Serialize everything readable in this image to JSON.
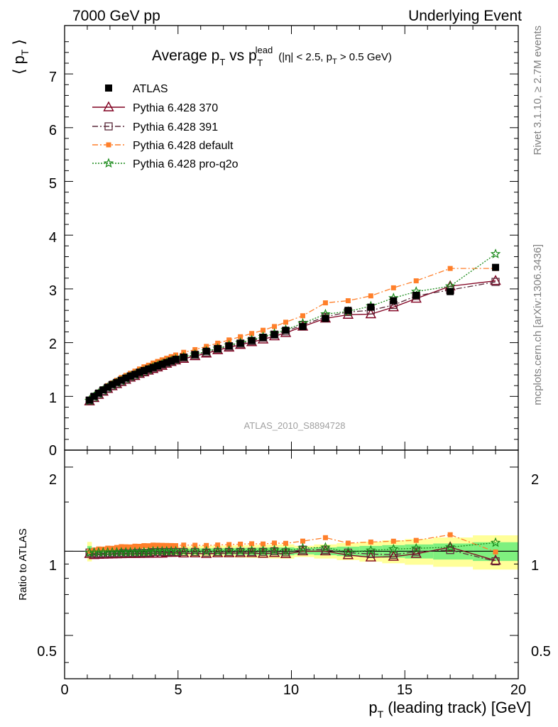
{
  "header": {
    "left": "7000 GeV pp",
    "right": "Underlying Event"
  },
  "title": {
    "main_a": "Average p",
    "main_sub1": "T",
    "main_b": " vs p",
    "main_sup": "lead",
    "main_sub2": "T",
    "cut_a": "(|η| < 2.5, p",
    "cut_sub": "T",
    "cut_b": " > 0.5 GeV)"
  },
  "side_text": {
    "rivet": "Rivet 3.1.10, ≥ 2.7M events",
    "mcplots": "mcplots.cern.ch [arXiv:1306.3436]"
  },
  "watermark": "ATLAS_2010_S8894728",
  "axes": {
    "ylabel_main": "⟨ p",
    "ylabel_main_sub": "T",
    "ylabel_main_end": " ⟩",
    "ylabel_ratio": "Ratio to ATLAS",
    "xlabel_a": "p",
    "xlabel_sub": "T",
    "xlabel_b": " (leading track) [GeV]",
    "x_ticks": [
      "0",
      "5",
      "10",
      "15",
      "20"
    ],
    "y_ticks_main": [
      "0",
      "1",
      "2",
      "3",
      "4",
      "5",
      "6",
      "7"
    ],
    "y_ticks_ratio": [
      "0.5",
      "1",
      "2"
    ]
  },
  "legend": [
    {
      "label": "ATLAS",
      "color": "#000000",
      "marker": "square-filled",
      "line": "none"
    },
    {
      "label": "Pythia 6.428 370",
      "color": "#800020",
      "marker": "triangle-open",
      "line": "solid"
    },
    {
      "label": "Pythia 6.428 391",
      "color": "#5a2a3a",
      "marker": "square-open",
      "line": "dashdot"
    },
    {
      "label": "Pythia 6.428 default",
      "color": "#ff7f2a",
      "marker": "square-filled-small",
      "line": "dashdot"
    },
    {
      "label": "Pythia 6.428 pro-q2o",
      "color": "#1a8a1a",
      "marker": "star-open",
      "line": "dotted"
    }
  ],
  "chart_data": {
    "type": "line",
    "xlim": [
      0,
      20
    ],
    "ylim": [
      0,
      7.9
    ],
    "ratio_ylim": [
      0.35,
      2.3
    ],
    "ratio_scale": "log",
    "x": [
      1.1,
      1.3,
      1.5,
      1.7,
      1.9,
      2.1,
      2.3,
      2.5,
      2.7,
      2.9,
      3.1,
      3.3,
      3.5,
      3.7,
      3.9,
      4.1,
      4.3,
      4.5,
      4.7,
      4.9,
      5.25,
      5.75,
      6.25,
      6.75,
      7.25,
      7.75,
      8.25,
      8.75,
      9.25,
      9.75,
      10.5,
      11.5,
      12.5,
      13.5,
      14.5,
      15.5,
      17.0,
      19.0
    ],
    "series": [
      {
        "name": "ATLAS",
        "values": [
          0.93,
          1.0,
          1.06,
          1.12,
          1.17,
          1.22,
          1.26,
          1.3,
          1.34,
          1.38,
          1.41,
          1.45,
          1.48,
          1.51,
          1.54,
          1.57,
          1.6,
          1.63,
          1.66,
          1.69,
          1.73,
          1.78,
          1.84,
          1.89,
          1.94,
          1.99,
          2.04,
          2.1,
          2.15,
          2.23,
          2.3,
          2.45,
          2.6,
          2.66,
          2.78,
          2.88,
          2.95,
          3.4
        ]
      },
      {
        "name": "Pythia 6.428 370",
        "values": [
          0.91,
          0.97,
          1.03,
          1.09,
          1.14,
          1.19,
          1.23,
          1.27,
          1.31,
          1.35,
          1.38,
          1.42,
          1.45,
          1.48,
          1.51,
          1.54,
          1.57,
          1.61,
          1.64,
          1.67,
          1.7,
          1.75,
          1.8,
          1.86,
          1.91,
          1.96,
          2.01,
          2.06,
          2.12,
          2.18,
          2.3,
          2.45,
          2.52,
          2.53,
          2.66,
          2.82,
          3.05,
          3.15
        ]
      },
      {
        "name": "Pythia 6.428 391",
        "values": [
          0.92,
          0.98,
          1.04,
          1.1,
          1.15,
          1.2,
          1.24,
          1.28,
          1.32,
          1.36,
          1.39,
          1.43,
          1.46,
          1.49,
          1.53,
          1.56,
          1.59,
          1.62,
          1.65,
          1.68,
          1.72,
          1.77,
          1.82,
          1.88,
          1.93,
          1.98,
          2.03,
          2.09,
          2.15,
          2.21,
          2.33,
          2.48,
          2.57,
          2.6,
          2.7,
          2.87,
          2.98,
          3.13
        ]
      },
      {
        "name": "Pythia 6.428 default",
        "values": [
          0.93,
          1.01,
          1.08,
          1.14,
          1.2,
          1.25,
          1.3,
          1.35,
          1.39,
          1.43,
          1.47,
          1.51,
          1.55,
          1.58,
          1.62,
          1.65,
          1.68,
          1.71,
          1.74,
          1.77,
          1.82,
          1.87,
          1.93,
          1.99,
          2.05,
          2.11,
          2.17,
          2.23,
          2.3,
          2.38,
          2.5,
          2.74,
          2.78,
          2.87,
          3.02,
          3.15,
          3.38,
          3.38
        ]
      },
      {
        "name": "Pythia 6.428 pro-q2o",
        "values": [
          0.92,
          0.99,
          1.05,
          1.11,
          1.16,
          1.21,
          1.25,
          1.29,
          1.33,
          1.37,
          1.4,
          1.44,
          1.47,
          1.5,
          1.54,
          1.57,
          1.6,
          1.63,
          1.66,
          1.69,
          1.73,
          1.78,
          1.84,
          1.89,
          1.95,
          2.0,
          2.05,
          2.11,
          2.17,
          2.24,
          2.36,
          2.53,
          2.58,
          2.68,
          2.83,
          2.95,
          3.05,
          3.65
        ]
      }
    ]
  },
  "colors": {
    "band_inner": "#7ff07f",
    "band_outer": "#ffff99"
  }
}
